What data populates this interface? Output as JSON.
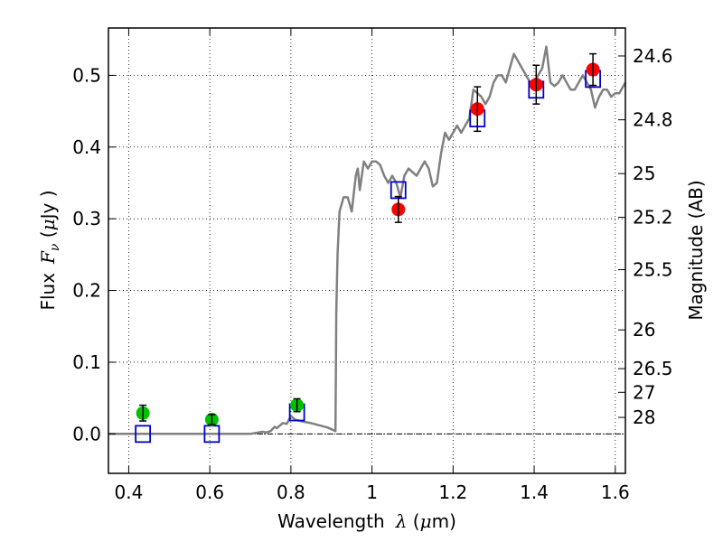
{
  "chart_data": {
    "type": "scatter",
    "title": "",
    "xlabel": "Wavelength",
    "xlabel_symbol": "λ",
    "xlabel_unit_open": " (",
    "xlabel_unit_mu": "μ",
    "xlabel_unit_close": "m)",
    "ylabel": "Flux",
    "ylabel_symbol": "F",
    "ylabel_sub": "ν",
    "ylabel_unit_open": " (",
    "ylabel_unit_mu": "μ",
    "ylabel_unit_close": "Jy )",
    "y2label": "Magnitude (AB)",
    "xlim": [
      0.35,
      1.625
    ],
    "ylim": [
      -0.055,
      0.566
    ],
    "grid": true,
    "x_ticks": [
      {
        "v": 0.4,
        "label": "0.4"
      },
      {
        "v": 0.6,
        "label": "0.6"
      },
      {
        "v": 0.8,
        "label": "0.8"
      },
      {
        "v": 1.0,
        "label": "1"
      },
      {
        "v": 1.2,
        "label": "1.2"
      },
      {
        "v": 1.4,
        "label": "1.4"
      },
      {
        "v": 1.6,
        "label": "1.6"
      }
    ],
    "y_ticks": [
      {
        "v": 0.0,
        "label": "0.0"
      },
      {
        "v": 0.1,
        "label": "0.1"
      },
      {
        "v": 0.2,
        "label": "0.2"
      },
      {
        "v": 0.3,
        "label": "0.3"
      },
      {
        "v": 0.4,
        "label": "0.4"
      },
      {
        "v": 0.5,
        "label": "0.5"
      }
    ],
    "y2_ticks": [
      {
        "label": "24.6",
        "flux": 0.527
      },
      {
        "label": "24.8",
        "flux": 0.438
      },
      {
        "label": "25",
        "flux": 0.363
      },
      {
        "label": "25.2",
        "flux": 0.302
      },
      {
        "label": "25.5",
        "flux": 0.229
      },
      {
        "label": "26",
        "flux": 0.145
      },
      {
        "label": "26.5",
        "flux": 0.091
      },
      {
        "label": "27",
        "flux": 0.058
      },
      {
        "label": "28",
        "flux": 0.023
      }
    ],
    "template_spectrum": {
      "name": "",
      "color": "#808080",
      "x": [
        0.35,
        0.7,
        0.72,
        0.73,
        0.74,
        0.75,
        0.76,
        0.765,
        0.78,
        0.79,
        0.8,
        0.81,
        0.83,
        0.85,
        0.87,
        0.89,
        0.91,
        0.912,
        0.915,
        0.92,
        0.93,
        0.94,
        0.95,
        0.96,
        0.965,
        0.97,
        0.98,
        0.99,
        1.0,
        1.01,
        1.02,
        1.03,
        1.04,
        1.05,
        1.06,
        1.07,
        1.08,
        1.09,
        1.1,
        1.11,
        1.12,
        1.13,
        1.14,
        1.15,
        1.16,
        1.17,
        1.18,
        1.19,
        1.2,
        1.21,
        1.22,
        1.23,
        1.24,
        1.25,
        1.26,
        1.27,
        1.28,
        1.29,
        1.3,
        1.31,
        1.32,
        1.33,
        1.34,
        1.35,
        1.36,
        1.37,
        1.38,
        1.39,
        1.4,
        1.41,
        1.42,
        1.43,
        1.44,
        1.45,
        1.46,
        1.47,
        1.48,
        1.49,
        1.5,
        1.51,
        1.52,
        1.53,
        1.54,
        1.55,
        1.56,
        1.57,
        1.58,
        1.59,
        1.6,
        1.61,
        1.625
      ],
      "y": [
        0.0,
        0.0,
        0.002,
        0.003,
        0.002,
        0.004,
        0.01,
        0.008,
        0.015,
        0.014,
        0.025,
        0.02,
        0.017,
        0.015,
        0.012,
        0.009,
        0.004,
        0.17,
        0.25,
        0.31,
        0.33,
        0.33,
        0.31,
        0.36,
        0.37,
        0.34,
        0.38,
        0.37,
        0.38,
        0.38,
        0.375,
        0.36,
        0.35,
        0.36,
        0.35,
        0.33,
        0.36,
        0.37,
        0.365,
        0.36,
        0.37,
        0.38,
        0.37,
        0.345,
        0.35,
        0.39,
        0.42,
        0.41,
        0.42,
        0.43,
        0.42,
        0.43,
        0.44,
        0.48,
        0.475,
        0.47,
        0.46,
        0.47,
        0.49,
        0.5,
        0.5,
        0.49,
        0.51,
        0.53,
        0.52,
        0.51,
        0.5,
        0.49,
        0.49,
        0.5,
        0.51,
        0.54,
        0.49,
        0.485,
        0.49,
        0.5,
        0.49,
        0.48,
        0.48,
        0.49,
        0.5,
        0.49,
        0.48,
        0.455,
        0.47,
        0.48,
        0.48,
        0.47,
        0.475,
        0.475,
        0.49
      ]
    },
    "model_points": {
      "name": "",
      "color": "#0000cc",
      "x": [
        0.435,
        0.605,
        0.815,
        1.065,
        1.26,
        1.405,
        1.545
      ],
      "y": [
        0.0,
        0.0,
        0.03,
        0.34,
        0.44,
        0.48,
        0.495
      ]
    },
    "observed_optical": {
      "name": "",
      "color": "#00c000",
      "x": [
        0.435,
        0.605,
        0.815
      ],
      "y": [
        0.029,
        0.02,
        0.04
      ],
      "err": [
        0.011,
        0.007,
        0.009
      ]
    },
    "observed_nir": {
      "name": "",
      "color": "#ff0000",
      "x": [
        1.065,
        1.26,
        1.405,
        1.545
      ],
      "y": [
        0.313,
        0.453,
        0.487,
        0.508
      ],
      "err": [
        0.018,
        0.031,
        0.027,
        0.022
      ]
    }
  }
}
